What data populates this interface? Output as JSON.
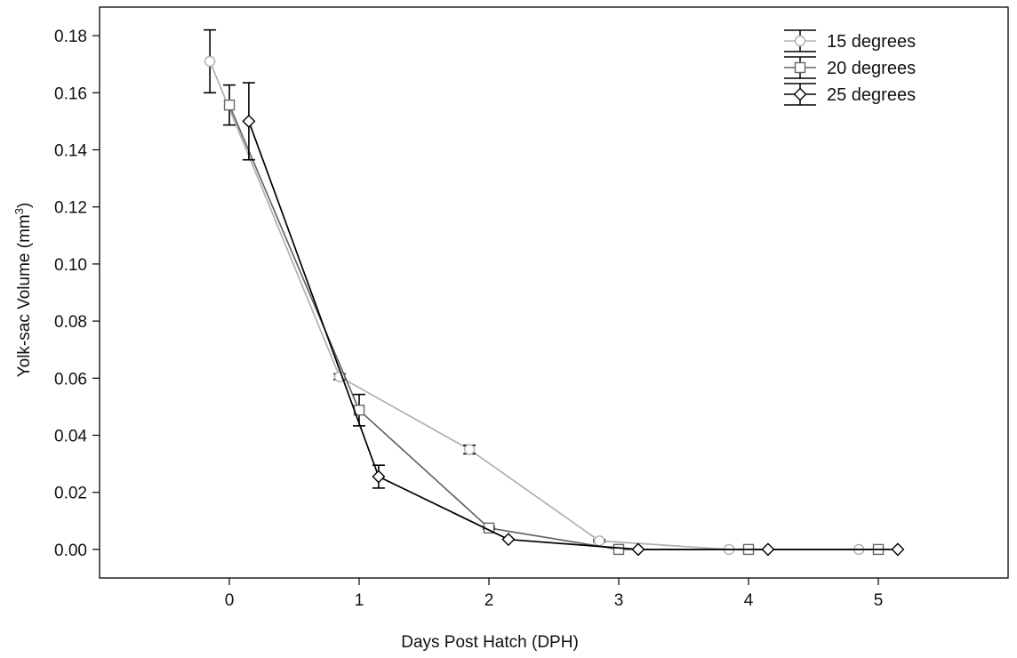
{
  "chart_data": {
    "type": "line",
    "title": "",
    "xlabel": "Days Post Hatch (DPH)",
    "ylabel": {
      "text": "Yolk-sac Volume (mm",
      "sup": "3",
      "suffix": ")"
    },
    "x_ticks": [
      "0",
      "1",
      "2",
      "3",
      "4",
      "5"
    ],
    "y_ticks": [
      "0.00",
      "0.02",
      "0.04",
      "0.06",
      "0.08",
      "0.10",
      "0.12",
      "0.14",
      "0.16",
      "0.18"
    ],
    "xlim": [
      -1,
      6
    ],
    "ylim": [
      -0.01,
      0.19
    ],
    "legend_position": "top-right",
    "error_bars": "vertical, capped",
    "series": [
      {
        "name": "15 degrees",
        "color": "#b0b0b0",
        "marker": "circle",
        "x": [
          -0.15,
          0.85,
          1.85,
          2.85,
          3.85,
          4.85
        ],
        "y": [
          0.171,
          0.0605,
          0.035,
          0.003,
          0.0,
          0.0
        ],
        "err": [
          0.011,
          0.001,
          0.0015,
          0.0004,
          0.0,
          0.0
        ]
      },
      {
        "name": "20 degrees",
        "color": "#666666",
        "marker": "square",
        "x": [
          0,
          1,
          2,
          3,
          4,
          5
        ],
        "y": [
          0.1557,
          0.0488,
          0.0075,
          0.0,
          0.0,
          0.0
        ],
        "err": [
          0.007,
          0.0055,
          0.0004,
          0.0,
          0.0,
          0.0
        ]
      },
      {
        "name": "25 degrees",
        "color": "#000000",
        "marker": "diamond",
        "x": [
          0.15,
          1.15,
          2.15,
          3.15,
          4.15,
          5.15
        ],
        "y": [
          0.15,
          0.0255,
          0.0035,
          0.0,
          0.0,
          0.0
        ],
        "err": [
          0.0135,
          0.004,
          0.0,
          0.0,
          0.0,
          0.0
        ]
      }
    ]
  }
}
